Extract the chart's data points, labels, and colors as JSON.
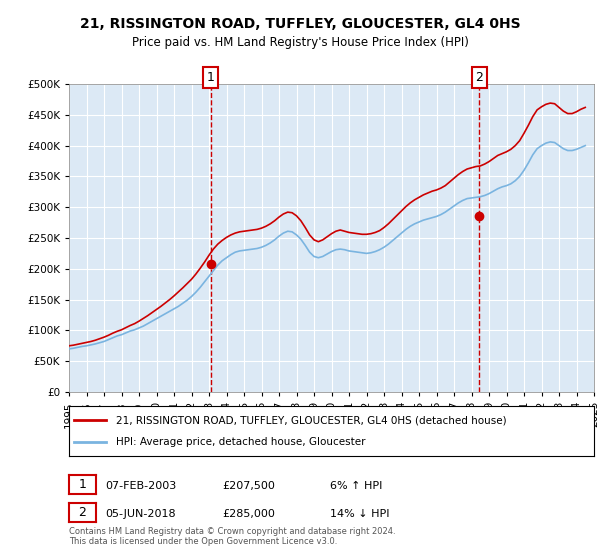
{
  "title_line1": "21, RISSINGTON ROAD, TUFFLEY, GLOUCESTER, GL4 0HS",
  "title_line2": "Price paid vs. HM Land Registry's House Price Index (HPI)",
  "ylabel": "",
  "xlabel": "",
  "background_color": "#dce9f5",
  "plot_bg_color": "#dce9f5",
  "fig_bg_color": "#ffffff",
  "hpi_color": "#7ab4e0",
  "price_color": "#cc0000",
  "marker_color": "#cc0000",
  "annotation_box_color": "#cc0000",
  "ylim_min": 0,
  "ylim_max": 500000,
  "ytick_step": 50000,
  "legend_line1": "21, RISSINGTON ROAD, TUFFLEY, GLOUCESTER, GL4 0HS (detached house)",
  "legend_line2": "HPI: Average price, detached house, Gloucester",
  "transaction1_label": "1",
  "transaction1_date": "07-FEB-2003",
  "transaction1_price": "£207,500",
  "transaction1_hpi": "6% ↑ HPI",
  "transaction1_year": 2003.1,
  "transaction1_value": 207500,
  "transaction2_label": "2",
  "transaction2_date": "05-JUN-2018",
  "transaction2_price": "£285,000",
  "transaction2_hpi": "14% ↓ HPI",
  "transaction2_year": 2018.45,
  "transaction2_value": 285000,
  "footer": "Contains HM Land Registry data © Crown copyright and database right 2024.\nThis data is licensed under the Open Government Licence v3.0.",
  "hpi_years": [
    1995,
    1995.25,
    1995.5,
    1995.75,
    1996,
    1996.25,
    1996.5,
    1996.75,
    1997,
    1997.25,
    1997.5,
    1997.75,
    1998,
    1998.25,
    1998.5,
    1998.75,
    1999,
    1999.25,
    1999.5,
    1999.75,
    2000,
    2000.25,
    2000.5,
    2000.75,
    2001,
    2001.25,
    2001.5,
    2001.75,
    2002,
    2002.25,
    2002.5,
    2002.75,
    2003,
    2003.25,
    2003.5,
    2003.75,
    2004,
    2004.25,
    2004.5,
    2004.75,
    2005,
    2005.25,
    2005.5,
    2005.75,
    2006,
    2006.25,
    2006.5,
    2006.75,
    2007,
    2007.25,
    2007.5,
    2007.75,
    2008,
    2008.25,
    2008.5,
    2008.75,
    2009,
    2009.25,
    2009.5,
    2009.75,
    2010,
    2010.25,
    2010.5,
    2010.75,
    2011,
    2011.25,
    2011.5,
    2011.75,
    2012,
    2012.25,
    2012.5,
    2012.75,
    2013,
    2013.25,
    2013.5,
    2013.75,
    2014,
    2014.25,
    2014.5,
    2014.75,
    2015,
    2015.25,
    2015.5,
    2015.75,
    2016,
    2016.25,
    2016.5,
    2016.75,
    2017,
    2017.25,
    2017.5,
    2017.75,
    2018,
    2018.25,
    2018.5,
    2018.75,
    2019,
    2019.25,
    2019.5,
    2019.75,
    2020,
    2020.25,
    2020.5,
    2020.75,
    2021,
    2021.25,
    2021.5,
    2021.75,
    2022,
    2022.25,
    2022.5,
    2022.75,
    2023,
    2023.25,
    2023.5,
    2023.75,
    2024,
    2024.25,
    2024.5
  ],
  "hpi_values": [
    70000,
    71000,
    72500,
    74000,
    75000,
    76500,
    78000,
    80000,
    82000,
    85000,
    88000,
    91000,
    93000,
    96000,
    99000,
    101000,
    104000,
    107000,
    111000,
    115000,
    119000,
    123000,
    127000,
    131000,
    135000,
    139000,
    144000,
    149000,
    155000,
    162000,
    170000,
    179000,
    188000,
    197000,
    206000,
    213000,
    218000,
    223000,
    227000,
    229000,
    230000,
    231000,
    232000,
    233000,
    235000,
    238000,
    242000,
    247000,
    253000,
    258000,
    261000,
    260000,
    255000,
    248000,
    238000,
    227000,
    220000,
    218000,
    220000,
    224000,
    228000,
    231000,
    232000,
    231000,
    229000,
    228000,
    227000,
    226000,
    225000,
    226000,
    228000,
    231000,
    235000,
    240000,
    246000,
    252000,
    258000,
    264000,
    269000,
    273000,
    276000,
    279000,
    281000,
    283000,
    285000,
    288000,
    292000,
    297000,
    302000,
    307000,
    311000,
    314000,
    315000,
    316000,
    317000,
    319000,
    322000,
    326000,
    330000,
    333000,
    335000,
    338000,
    343000,
    350000,
    360000,
    372000,
    385000,
    395000,
    400000,
    404000,
    406000,
    405000,
    400000,
    395000,
    392000,
    392000,
    394000,
    397000,
    400000
  ],
  "price_years": [
    1995,
    1995.25,
    1995.5,
    1995.75,
    1996,
    1996.25,
    1996.5,
    1996.75,
    1997,
    1997.25,
    1997.5,
    1997.75,
    1998,
    1998.25,
    1998.5,
    1998.75,
    1999,
    1999.25,
    1999.5,
    1999.75,
    2000,
    2000.25,
    2000.5,
    2000.75,
    2001,
    2001.25,
    2001.5,
    2001.75,
    2002,
    2002.25,
    2002.5,
    2002.75,
    2003,
    2003.25,
    2003.5,
    2003.75,
    2004,
    2004.25,
    2004.5,
    2004.75,
    2005,
    2005.25,
    2005.5,
    2005.75,
    2006,
    2006.25,
    2006.5,
    2006.75,
    2007,
    2007.25,
    2007.5,
    2007.75,
    2008,
    2008.25,
    2008.5,
    2008.75,
    2009,
    2009.25,
    2009.5,
    2009.75,
    2010,
    2010.25,
    2010.5,
    2010.75,
    2011,
    2011.25,
    2011.5,
    2011.75,
    2012,
    2012.25,
    2012.5,
    2012.75,
    2013,
    2013.25,
    2013.5,
    2013.75,
    2014,
    2014.25,
    2014.5,
    2014.75,
    2015,
    2015.25,
    2015.5,
    2015.75,
    2016,
    2016.25,
    2016.5,
    2016.75,
    2017,
    2017.25,
    2017.5,
    2017.75,
    2018,
    2018.25,
    2018.5,
    2018.75,
    2019,
    2019.25,
    2019.5,
    2019.75,
    2020,
    2020.25,
    2020.5,
    2020.75,
    2021,
    2021.25,
    2021.5,
    2021.75,
    2022,
    2022.25,
    2022.5,
    2022.75,
    2023,
    2023.25,
    2023.5,
    2023.75,
    2024,
    2024.25,
    2024.5
  ],
  "price_values": [
    75000,
    76000,
    77500,
    79000,
    80500,
    82000,
    84000,
    86500,
    89000,
    92000,
    95500,
    98500,
    101000,
    104500,
    108000,
    111000,
    115000,
    119500,
    124000,
    129000,
    134000,
    139000,
    144500,
    150000,
    156000,
    162500,
    169000,
    176000,
    183000,
    191500,
    201000,
    211000,
    222000,
    232000,
    240000,
    246000,
    251000,
    255000,
    258000,
    260000,
    261000,
    262000,
    263000,
    264000,
    266000,
    269000,
    273000,
    278000,
    284000,
    289000,
    292000,
    291000,
    286000,
    278000,
    267000,
    255000,
    247000,
    244000,
    247000,
    252000,
    257000,
    261000,
    263000,
    261000,
    259000,
    258000,
    257000,
    256000,
    256000,
    257000,
    259000,
    262000,
    267000,
    273000,
    280000,
    287000,
    294000,
    301000,
    307000,
    312000,
    316000,
    320000,
    323000,
    326000,
    328000,
    331000,
    335000,
    341000,
    347000,
    353000,
    358000,
    362000,
    364000,
    366000,
    367000,
    370000,
    374000,
    379000,
    384000,
    387000,
    390000,
    394000,
    400000,
    408000,
    420000,
    433000,
    447000,
    458000,
    463000,
    467000,
    469000,
    468000,
    462000,
    456000,
    452000,
    452000,
    455000,
    459000,
    462000
  ]
}
